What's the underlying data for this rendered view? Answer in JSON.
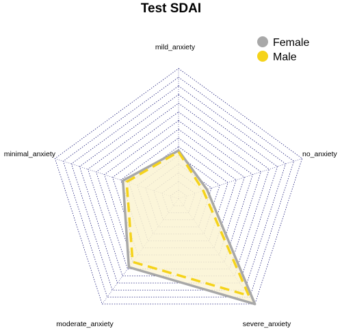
{
  "chart_data": {
    "type": "radar",
    "title": "Test SDAI",
    "axes": [
      "mild_anxiety",
      "no_anxiety",
      "severe_anxiety",
      "moderate_anxiety",
      "minimal_anxiety"
    ],
    "range": [
      0,
      1
    ],
    "grid_levels": 15,
    "legend_position": "top-right",
    "series": [
      {
        "name": "Female",
        "color": "#a8a8a8",
        "line_style": "solid",
        "values": [
          0.37,
          0.23,
          1.0,
          0.65,
          0.45
        ]
      },
      {
        "name": "Male",
        "color": "#f5d31a",
        "line_style": "dashed",
        "values": [
          0.36,
          0.2,
          0.92,
          0.6,
          0.42
        ]
      }
    ],
    "fill_color": "#fbf3d3",
    "grid_color": "#1a1a7a"
  }
}
